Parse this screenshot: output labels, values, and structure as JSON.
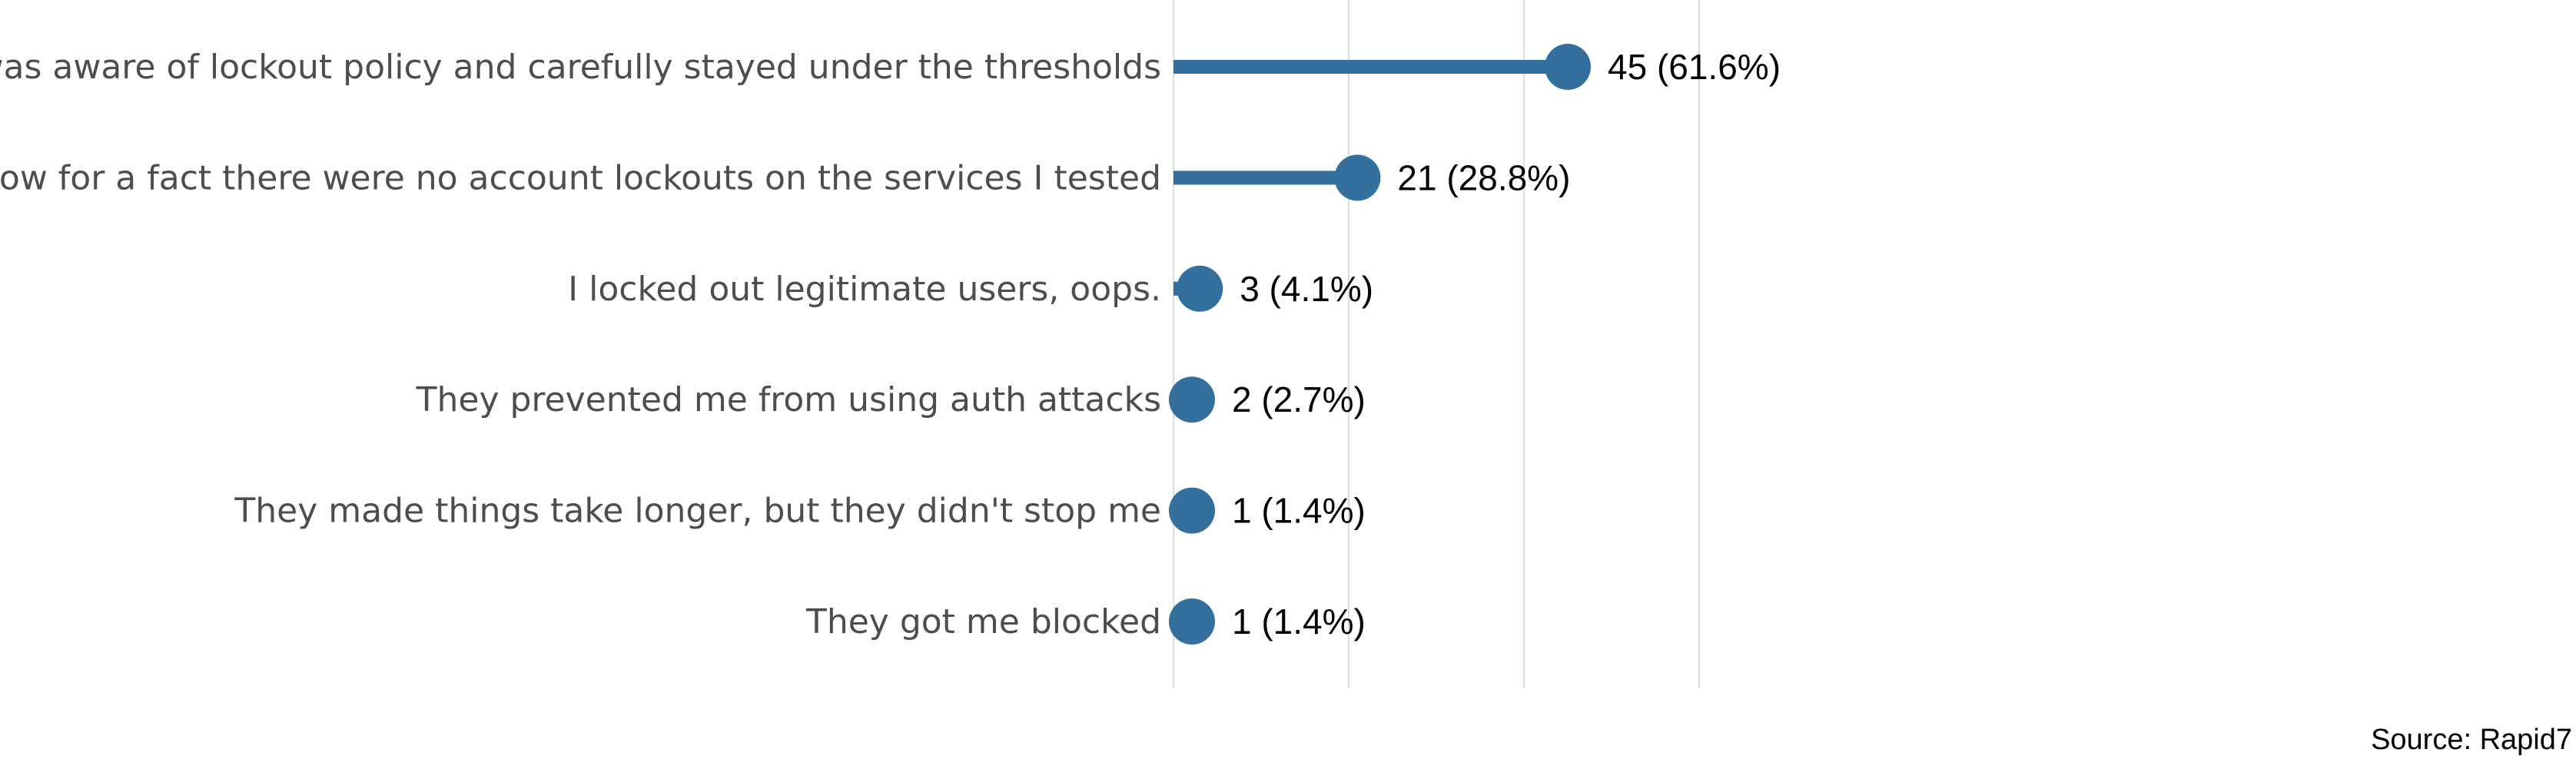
{
  "chart_data": {
    "type": "bar",
    "style": "lollipop",
    "orientation": "horizontal",
    "categories": [
      "I was aware of lockout policy and carefully stayed under the thresholds",
      "I know for a fact there were no account lockouts on the services I tested",
      "I locked out legitimate users, oops.",
      "They prevented me from using auth attacks",
      "They made things take longer, but they didn't stop me",
      "They got me blocked"
    ],
    "values": [
      45,
      21,
      3,
      2,
      1,
      1
    ],
    "value_labels": [
      "45 (61.6%)",
      "21 (28.8%)",
      "3 (4.1%)",
      "2 (2.7%)",
      "1 (1.4%)",
      "1 (1.4%)"
    ],
    "xlim": [
      0,
      80
    ],
    "grid": true,
    "color": "#33709e",
    "source": "Source: Rapid7"
  }
}
